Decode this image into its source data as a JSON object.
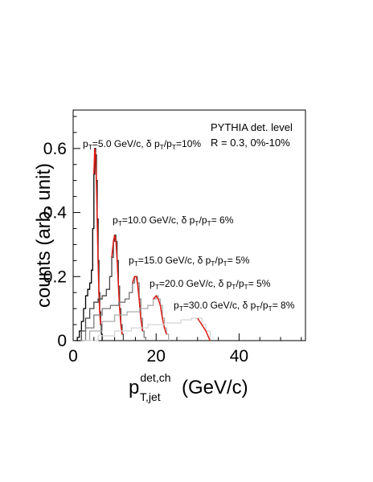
{
  "chart_data": {
    "type": "line",
    "title": "",
    "info_lines": [
      "PYTHIA det. level",
      "R = 0.3, 0%-10%"
    ],
    "xlabel": {
      "main": "p",
      "sup": "det,ch",
      "sub": "T,jet",
      "unit": "(GeV/c)"
    },
    "ylabel": "counts (arb. unit)",
    "xlim": [
      0,
      56
    ],
    "ylim": [
      0,
      0.72
    ],
    "xticks": [
      0,
      20,
      40
    ],
    "yticks": [
      0,
      0.2,
      0.4,
      0.6
    ],
    "x_tick_labels": [
      "0",
      "20",
      "40"
    ],
    "y_tick_labels": [
      "0",
      "0.2",
      "0.4",
      "0.6"
    ],
    "grid": false,
    "series": [
      {
        "color": "#000000",
        "peak_color": "#e01a12",
        "annotation": {
          "p": "p",
          "sub1": "T",
          "eq": "=5.0 GeV/c, δ p",
          "sub2": "T",
          "sep": "/p",
          "sub3": "T",
          "val": "=10%"
        },
        "x": [
          0.5,
          1.0,
          1.5,
          2.0,
          2.5,
          3.0,
          3.5,
          4.0,
          4.4,
          4.7,
          5.0,
          5.2,
          5.4,
          5.6,
          5.8,
          6.0,
          6.2,
          6.4,
          6.6,
          6.8,
          7.0
        ],
        "y": [
          0.0,
          0.01,
          0.03,
          0.06,
          0.1,
          0.14,
          0.16,
          0.18,
          0.22,
          0.35,
          0.52,
          0.6,
          0.58,
          0.5,
          0.38,
          0.25,
          0.15,
          0.09,
          0.05,
          0.02,
          0.0
        ],
        "peak_range": [
          5.0,
          6.6
        ]
      },
      {
        "color": "#444444",
        "peak_color": "#e01a12",
        "annotation": {
          "p": "p",
          "sub1": "T",
          "eq": "=10.0 GeV/c, δ p",
          "sub2": "T",
          "sep": "/p",
          "sub3": "T",
          "val": "= 6%"
        },
        "x": [
          1.0,
          2.0,
          3.0,
          4.0,
          5.0,
          6.0,
          7.0,
          8.0,
          8.8,
          9.3,
          9.7,
          10.0,
          10.3,
          10.6,
          10.9,
          11.2,
          11.5,
          11.8,
          12.1
        ],
        "y": [
          0.0,
          0.03,
          0.07,
          0.1,
          0.12,
          0.13,
          0.14,
          0.16,
          0.2,
          0.26,
          0.31,
          0.33,
          0.31,
          0.25,
          0.17,
          0.1,
          0.05,
          0.02,
          0.0
        ],
        "peak_range": [
          9.3,
          11.8
        ]
      },
      {
        "color": "#777777",
        "peak_color": "#e01a12",
        "annotation": {
          "p": "p",
          "sub1": "T",
          "eq": "=15.0 GeV/c, δ p",
          "sub2": "T",
          "sep": "/p",
          "sub3": "T",
          "val": "= 5%"
        },
        "x": [
          1.5,
          3.0,
          5.0,
          7.0,
          9.0,
          11.0,
          12.5,
          13.5,
          14.3,
          14.8,
          15.2,
          15.5,
          15.9,
          16.3,
          16.7,
          17.1,
          17.5
        ],
        "y": [
          0.0,
          0.04,
          0.08,
          0.1,
          0.11,
          0.12,
          0.13,
          0.15,
          0.18,
          0.2,
          0.2,
          0.18,
          0.13,
          0.07,
          0.03,
          0.01,
          0.0
        ],
        "peak_range": [
          14.3,
          16.7
        ]
      },
      {
        "color": "#aaaaaa",
        "peak_color": "#e01a12",
        "annotation": {
          "p": "p",
          "sub1": "T",
          "eq": "=20.0 GeV/c, δ p",
          "sub2": "T",
          "sep": "/p",
          "sub3": "T",
          "val": "= 5%"
        },
        "x": [
          2.0,
          4.0,
          7.0,
          10.0,
          13.0,
          16.0,
          18.0,
          19.3,
          20.0,
          20.5,
          21.0,
          21.5,
          22.0,
          22.5,
          23.0
        ],
        "y": [
          0.0,
          0.03,
          0.06,
          0.08,
          0.09,
          0.1,
          0.11,
          0.13,
          0.14,
          0.13,
          0.11,
          0.07,
          0.04,
          0.02,
          0.0
        ],
        "peak_range": [
          19.3,
          22.5
        ]
      },
      {
        "color": "#d4d4d4",
        "peak_color": "#e01a12",
        "annotation": {
          "p": "p",
          "sub1": "T",
          "eq": "=30.0 GeV/c, δ p",
          "sub2": "T",
          "sep": "/p",
          "sub3": "T",
          "val": "= 8%"
        },
        "x": [
          2.5,
          6.0,
          10.0,
          14.0,
          18.0,
          22.0,
          26.0,
          28.5,
          30.0,
          31.0,
          32.0,
          33.0
        ],
        "y": [
          0.0,
          0.015,
          0.03,
          0.04,
          0.05,
          0.055,
          0.065,
          0.07,
          0.07,
          0.05,
          0.03,
          0.0
        ],
        "peak_range": [
          29.5,
          33.0
        ]
      }
    ]
  }
}
